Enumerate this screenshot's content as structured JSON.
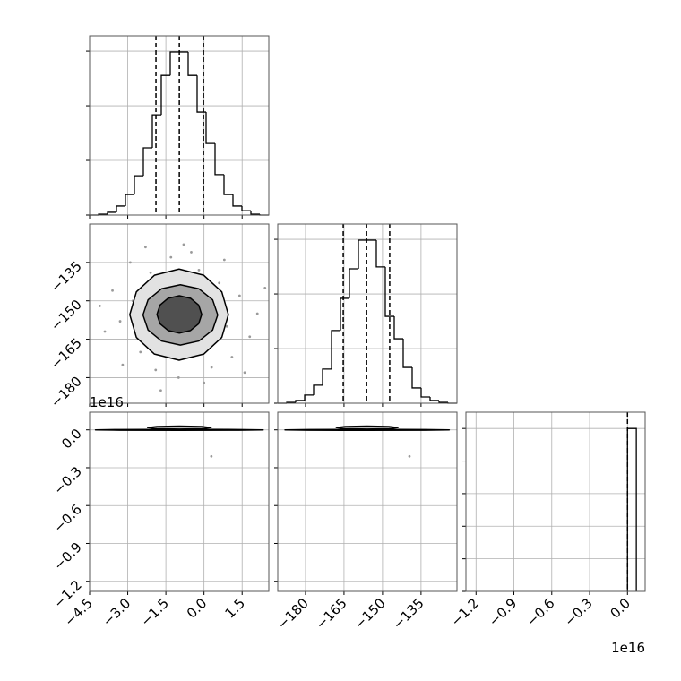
{
  "chart_data": [
    {
      "type": "histogram",
      "color": "#000000",
      "grid": true,
      "bins": [
        -4.5,
        -4.1475,
        -3.795,
        -3.4425,
        -3.09,
        -2.7375,
        -2.385,
        -2.0325,
        -1.68,
        -1.3275,
        -0.975,
        -0.6225,
        -0.27,
        0.0825,
        0.435,
        0.7875,
        1.14,
        1.4925,
        1.845,
        2.1975,
        2.55
      ],
      "counts": [
        0,
        3,
        10,
        33,
        75,
        144,
        246,
        367,
        511,
        597,
        597,
        511,
        377,
        262,
        148,
        75,
        33,
        16,
        3,
        0
      ],
      "quantiles": [
        -1.89,
        -0.97,
        -0.02
      ],
      "xlim": [
        -4.5,
        2.55
      ],
      "xticks": [
        -4.5,
        -3,
        -1.5,
        0,
        1.5
      ],
      "ylim": [
        0,
        656
      ],
      "yticks": [
        0,
        200,
        400,
        600
      ]
    },
    {
      "type": "density",
      "color": "#000000",
      "point_color": "#9a9a9a",
      "grid": true,
      "x": [
        -2.8,
        0.9,
        -1.5,
        -0.2,
        -3.3,
        1.4,
        -2.1,
        0.3,
        -1.0,
        -3.6,
        1.8,
        -2.5,
        -0.5,
        0.6,
        -1.9,
        2.1,
        -3.9,
        -0.8,
        1.1,
        -2.9,
        0.0,
        -1.3,
        2.4,
        -4.1,
        -1.7,
        0.8,
        -3.2,
        1.6,
        -2.3,
        -0.4
      ],
      "y": [
        -150,
        -160,
        -172,
        -138,
        -158,
        -148,
        -139,
        -176,
        -180,
        -146,
        -164,
        -170,
        -131,
        -143,
        -177,
        -155,
        -162,
        -128,
        -172,
        -135,
        -182,
        -133,
        -145,
        -152,
        -185,
        -134,
        -175,
        -178,
        -129,
        -168
      ],
      "contours": [
        {
          "fill": "#e2e2e2",
          "x": [
            0.96,
            0.7,
            -0.01,
            -0.98,
            -1.95,
            -2.66,
            -2.92,
            -2.66,
            -1.95,
            -0.98,
            -0.01,
            0.7
          ],
          "y": [
            -155.4,
            -146.5,
            -140.0,
            -137.6,
            -140.0,
            -146.5,
            -155.4,
            -164.3,
            -170.8,
            -173.2,
            -170.8,
            -164.3
          ]
        },
        {
          "fill": "#a6a6a6",
          "x": [
            0.54,
            0.34,
            -0.2,
            -0.93,
            -1.67,
            -2.2,
            -2.4,
            -2.2,
            -1.67,
            -0.93,
            -0.2,
            0.34
          ],
          "y": [
            -155.5,
            -149.6,
            -145.3,
            -143.7,
            -145.3,
            -149.6,
            -155.5,
            -161.4,
            -165.7,
            -167.3,
            -165.7,
            -161.4
          ]
        },
        {
          "fill": "#505050",
          "x": [
            -0.09,
            -0.21,
            -0.53,
            -0.97,
            -1.41,
            -1.73,
            -1.85,
            -1.73,
            -1.41,
            -0.97,
            -0.53,
            -0.21
          ],
          "y": [
            -155.3,
            -151.65,
            -149.0,
            -148.0,
            -149.0,
            -151.65,
            -155.3,
            -158.95,
            -161.6,
            -162.6,
            -161.6,
            -158.95
          ]
        }
      ],
      "xlim": [
        -4.5,
        2.55
      ],
      "xticks": [
        -4.5,
        -3,
        -1.5,
        0,
        1.5
      ],
      "ylim": [
        -190,
        -120
      ],
      "yticks": [
        {
          "value": -180,
          "label": "−180"
        },
        {
          "value": -165,
          "label": "−165"
        },
        {
          "value": -150,
          "label": "−150"
        },
        {
          "value": -135,
          "label": "−135"
        }
      ]
    },
    {
      "type": "histogram",
      "color": "#000000",
      "grid": true,
      "bins": [
        -190.8,
        -187.31,
        -183.82,
        -180.33,
        -176.84,
        -173.35,
        -169.86,
        -166.37,
        -162.88,
        -159.39,
        -155.9,
        -152.41,
        -148.92,
        -145.43,
        -141.94,
        -138.45,
        -134.96,
        -131.47,
        -127.98,
        -124.49,
        -121.0
      ],
      "counts": [
        0,
        3,
        10,
        30,
        66,
        125,
        266,
        384,
        492,
        597,
        597,
        499,
        318,
        236,
        131,
        56,
        23,
        10,
        3,
        0
      ],
      "quantiles": [
        -165.3,
        -156.2,
        -147.2
      ],
      "xlim": [
        -190.8,
        -121
      ],
      "xticks": [
        -180,
        -165,
        -150,
        -135
      ],
      "ylim": [
        0,
        656
      ],
      "yticks": [
        0,
        200,
        400,
        600
      ]
    },
    {
      "type": "density",
      "color": "#000000",
      "point_color": "#9a9a9a",
      "grid": true,
      "x": [
        0.29
      ],
      "y": [
        -0.21
      ],
      "contours": [
        {
          "fill": "#d0d0d0",
          "x": [
            2.33,
            1.36,
            -0.97,
            -3.3,
            -4.27,
            -3.3,
            -0.97,
            1.36
          ],
          "y": [
            0,
            0.0028,
            0.004,
            0.0028,
            0,
            -0.0028,
            -0.004,
            -0.0028
          ]
        },
        {
          "fill": "#bdbdbd",
          "x": [
            0.28,
            -0.09,
            -0.97,
            -1.85,
            -2.22,
            -1.85,
            -0.97,
            -0.09
          ],
          "y": [
            0.018,
            0.0265,
            0.03,
            0.0265,
            0.018,
            0.0095,
            0.006,
            0.0095
          ]
        }
      ],
      "xlim": [
        -4.5,
        2.55
      ],
      "xticks": [
        {
          "value": -4.5,
          "label": "−4.5"
        },
        {
          "value": -3,
          "label": "−3.0"
        },
        {
          "value": -1.5,
          "label": "−1.5"
        },
        {
          "value": 0,
          "label": "0.0"
        },
        {
          "value": 1.5,
          "label": "1.5"
        }
      ],
      "ylim": [
        -1.28,
        0.14
      ],
      "yticks": [
        {
          "value": 0,
          "label": "0.0"
        },
        {
          "value": -0.3,
          "label": "−0.3"
        },
        {
          "value": -0.6,
          "label": "−0.6"
        },
        {
          "value": -0.9,
          "label": "−0.9"
        },
        {
          "value": -1.2,
          "label": "−1.2"
        }
      ],
      "y_offset_label": "1e16"
    },
    {
      "type": "density",
      "color": "#000000",
      "point_color": "#9a9a9a",
      "grid": true,
      "x": [
        -139.5
      ],
      "y": [
        -0.21
      ],
      "contours": [
        {
          "fill": "#d0d0d0",
          "x": [
            -124,
            -133.4,
            -156,
            -178.6,
            -188,
            -178.6,
            -156,
            -133.4
          ],
          "y": [
            0,
            0.0028,
            0.004,
            0.0028,
            0,
            -0.0028,
            -0.004,
            -0.0028
          ]
        },
        {
          "fill": "#bdbdbd",
          "x": [
            -144,
            -147.5,
            -156,
            -164.5,
            -168,
            -164.5,
            -156,
            -147.5
          ],
          "y": [
            0.018,
            0.0265,
            0.03,
            0.0265,
            0.018,
            0.0095,
            0.006,
            0.0095
          ]
        }
      ],
      "xlim": [
        -190.8,
        -121
      ],
      "xticks": [
        {
          "value": -180,
          "label": "−180"
        },
        {
          "value": -165,
          "label": "−165"
        },
        {
          "value": -150,
          "label": "−150"
        },
        {
          "value": -135,
          "label": "−135"
        }
      ],
      "ylim": [
        -1.28,
        0.14
      ],
      "yticks": [
        0,
        -0.3,
        -0.6,
        -0.9,
        -1.2
      ]
    },
    {
      "type": "histogram",
      "color": "#000000",
      "grid": true,
      "bins": [
        0.0,
        0.07
      ],
      "counts": [
        5000
      ],
      "quantiles": [
        0.0
      ],
      "xlim": [
        -1.28,
        0.14
      ],
      "xticks": [
        {
          "value": -1.2,
          "label": "−1.2"
        },
        {
          "value": -0.9,
          "label": "−0.9"
        },
        {
          "value": -0.6,
          "label": "−0.6"
        },
        {
          "value": -0.3,
          "label": "−0.3"
        },
        {
          "value": 0,
          "label": "0.0"
        }
      ],
      "ylim": [
        0,
        5500
      ],
      "yticks": [
        0,
        1000,
        2000,
        3000,
        4000,
        5000
      ],
      "x_offset_label": "1e16"
    }
  ]
}
